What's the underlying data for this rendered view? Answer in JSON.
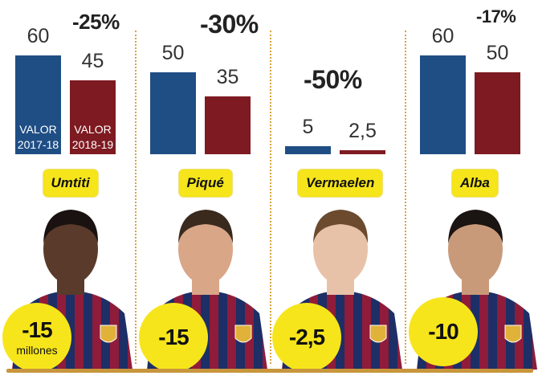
{
  "chart_data": {
    "type": "bar",
    "series": [
      {
        "name": "VALOR 2017-18",
        "values": [
          60,
          50,
          5,
          60
        ]
      },
      {
        "name": "VALOR 2018-19",
        "values": [
          45,
          35,
          2.5,
          50
        ]
      }
    ],
    "categories": [
      "Umtiti",
      "Piqué",
      "Vermaelen",
      "Alba"
    ],
    "ylim": [
      0,
      60
    ],
    "grid": false,
    "legend": "inside-bars",
    "colors": {
      "series_2017_18": "#1f4e85",
      "series_2018_19": "#7e1a21",
      "badge": "#f5e51a",
      "divider": "#d9a441"
    },
    "players": [
      {
        "name": "Umtiti",
        "value_2017_18": "60",
        "value_2018_19": "45",
        "change_pct": "-25%",
        "loss": "-15",
        "loss_unit": "millones"
      },
      {
        "name": "Piqué",
        "value_2017_18": "50",
        "value_2018_19": "35",
        "change_pct": "-30%",
        "loss": "-15",
        "loss_unit": ""
      },
      {
        "name": "Vermaelen",
        "value_2017_18": "5",
        "value_2018_19": "2,5",
        "change_pct": "-50%",
        "loss": "-2,5",
        "loss_unit": ""
      },
      {
        "name": "Alba",
        "value_2017_18": "60",
        "value_2018_19": "50",
        "change_pct": "-17%",
        "loss": "-10",
        "loss_unit": ""
      }
    ],
    "bar_labels": {
      "line1": "VALOR",
      "year_2017_18": "2017-18",
      "year_2018_19": "2018-19"
    }
  }
}
